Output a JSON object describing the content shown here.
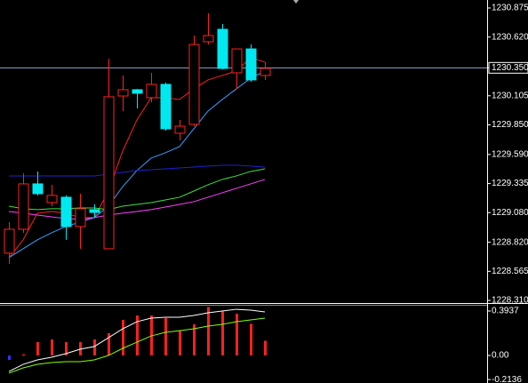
{
  "chart_data": [
    {
      "type": "candlestick",
      "open": [
        1228.724,
        1228.934,
        1229.332,
        1229.168,
        1229.215,
        1228.958,
        1229.106,
        1228.763,
        1230.103,
        1230.158,
        1230.088,
        1230.205,
        1229.776,
        1229.854,
        1230.579,
        1230.688,
        1230.306,
        1230.516,
        1230.283
      ],
      "high": [
        1228.997,
        1229.425,
        1229.441,
        1229.324,
        1229.231,
        1229.246,
        1229.153,
        1230.431,
        1230.283,
        1230.166,
        1230.306,
        1230.22,
        1229.893,
        1230.633,
        1230.828,
        1230.735,
        1230.516,
        1230.555,
        1230.399
      ],
      "low": [
        1228.63,
        1228.903,
        1229.231,
        1229.137,
        1228.841,
        1228.763,
        1229.036,
        1228.763,
        1229.971,
        1229.994,
        1230.049,
        1229.799,
        1229.714,
        1229.838,
        1230.555,
        1230.337,
        1230.166,
        1230.228,
        1230.244
      ],
      "close": [
        1228.934,
        1229.332,
        1229.246,
        1229.231,
        1228.958,
        1229.114,
        1229.082,
        1230.096,
        1230.158,
        1230.127,
        1230.205,
        1229.815,
        1229.838,
        1230.555,
        1230.633,
        1230.345,
        1230.516,
        1230.244,
        1230.345
      ],
      "up_color": "#ff2020",
      "down_color": "#00e8f0",
      "series": [
        {
          "color": "#ff2020",
          "values": [
            1228.685,
            1228.841,
            1229.075,
            1229.09,
            1229.075,
            1229.036,
            1229.036,
            1229.269,
            1229.62,
            1229.893,
            1230.088,
            1230.088,
            1230.072,
            1230.166,
            1230.244,
            1230.283,
            1230.322,
            1230.439,
            1230.4
          ]
        },
        {
          "color": "#3aa0ff",
          "values": [
            1228.685,
            1228.763,
            1228.841,
            1228.903,
            1228.958,
            1228.997,
            1229.036,
            1229.137,
            1229.308,
            1229.449,
            1229.558,
            1229.605,
            1229.659,
            1229.815,
            1229.971,
            1230.072,
            1230.166,
            1230.259,
            1230.322
          ]
        },
        {
          "color": "#40e040",
          "values": [
            1229.137,
            1229.114,
            1229.106,
            1229.114,
            1229.114,
            1229.121,
            1229.121,
            1229.106,
            1229.137,
            1229.152,
            1229.168,
            1229.191,
            1229.215,
            1229.269,
            1229.324,
            1229.371,
            1229.402,
            1229.441,
            1229.464
          ]
        },
        {
          "color": "#ff40ff",
          "values": [
            1229.09,
            1229.075,
            1229.059,
            1229.043,
            1229.028,
            1229.02,
            1229.036,
            1229.059,
            1229.075,
            1229.09,
            1229.106,
            1229.129,
            1229.152,
            1229.176,
            1229.215,
            1229.254,
            1229.293,
            1229.332,
            1229.371
          ]
        },
        {
          "color": "#2020d0",
          "values": [
            1229.402,
            1229.402,
            1229.402,
            1229.402,
            1229.402,
            1229.402,
            1229.402,
            1229.417,
            1229.433,
            1229.449,
            1229.456,
            1229.464,
            1229.472,
            1229.48,
            1229.488,
            1229.495,
            1229.495,
            1229.488,
            1229.48
          ]
        }
      ],
      "current_price": 1230.35,
      "current_price_color": "#8fa3c8",
      "ylim": [
        1228.287,
        1230.945
      ],
      "yticks": [
        1230.875,
        {
          "value": 1230.62,
          "label": "1230.620"
        },
        {
          "value": 1230.35,
          "label": "1230.350"
        },
        1230.105,
        {
          "value": 1229.85,
          "label": "1229.850"
        },
        {
          "value": 1229.59,
          "label": "1229.590"
        },
        1229.335,
        {
          "value": 1229.08,
          "label": "1229.080"
        },
        {
          "value": 1228.82,
          "label": "1228.820"
        },
        1228.565,
        {
          "value": 1228.31,
          "label": "1228.310"
        }
      ]
    },
    {
      "type": "macd",
      "values": [
        -0.04,
        0.01,
        0.118,
        0.142,
        0.118,
        0.118,
        0.142,
        0.197,
        0.315,
        0.354,
        0.354,
        0.331,
        0.22,
        0.276,
        0.43,
        0.39,
        0.37,
        0.28,
        0.13
      ],
      "color": "#ff2020",
      "negative_color": "#3030ff",
      "series": [
        {
          "color": "#ffffff",
          "values": [
            -0.142,
            -0.079,
            -0.039,
            -0.016,
            0.016,
            0.055,
            0.079,
            0.157,
            0.236,
            0.299,
            0.331,
            0.339,
            0.339,
            0.354,
            0.378,
            0.394,
            0.409,
            0.402,
            0.386
          ]
        },
        {
          "color": "#7fff00",
          "values": [
            -0.157,
            -0.11,
            -0.079,
            -0.063,
            -0.055,
            -0.055,
            -0.039,
            0,
            0.063,
            0.118,
            0.173,
            0.205,
            0.22,
            0.236,
            0.26,
            0.276,
            0.299,
            0.315,
            0.331
          ]
        }
      ],
      "ylim": [
        -0.244,
        0.441
      ],
      "yticks": [
        0.3937,
        {
          "value": 0,
          "label": "0.00"
        },
        -0.2136
      ]
    }
  ]
}
